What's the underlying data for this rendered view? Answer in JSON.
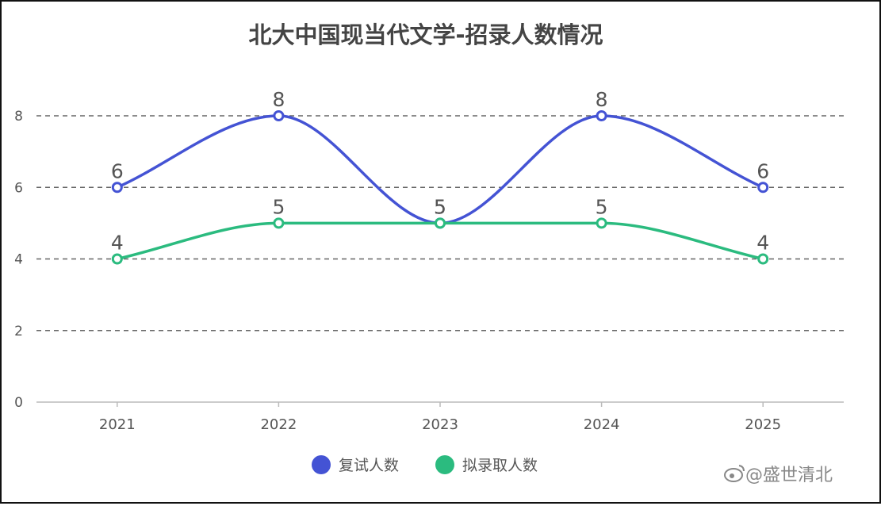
{
  "chart_data": {
    "type": "line",
    "title": "北大中国现当代文学-招录人数情况",
    "categories": [
      "2021",
      "2022",
      "2023",
      "2024",
      "2025"
    ],
    "ylim": [
      0,
      8
    ],
    "yticks": [
      "0",
      "2",
      "4",
      "6",
      "8"
    ],
    "grid": "dashed horizontal",
    "legend_position": "bottom-center",
    "smooth": true,
    "series": [
      {
        "name": "复试人数",
        "values": [
          6,
          8,
          5,
          8,
          6
        ],
        "color": "#4453d4"
      },
      {
        "name": "拟录取人数",
        "values": [
          4,
          5,
          5,
          5,
          4
        ],
        "color": "#2bbb7f"
      }
    ]
  },
  "watermark": "@盛世清北",
  "watermark_icon": "weibo-logo-icon"
}
